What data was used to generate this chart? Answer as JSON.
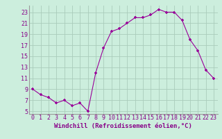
{
  "x": [
    0,
    1,
    2,
    3,
    4,
    5,
    6,
    7,
    8,
    9,
    10,
    11,
    12,
    13,
    14,
    15,
    16,
    17,
    18,
    19,
    20,
    21,
    22,
    23
  ],
  "y": [
    9,
    8,
    7.5,
    6.5,
    7,
    6,
    6.5,
    5,
    12,
    16.5,
    19.5,
    20,
    21,
    22,
    22,
    22.5,
    23.5,
    23,
    23,
    21.5,
    18,
    16,
    12.5,
    11
  ],
  "line_color": "#990099",
  "marker_color": "#990099",
  "bg_color": "#cceedd",
  "grid_color": "#aaccbb",
  "xlabel": "Windchill (Refroidissement éolien,°C)",
  "ylabel_ticks": [
    5,
    7,
    9,
    11,
    13,
    15,
    17,
    19,
    21,
    23
  ],
  "xtick_labels": [
    "0",
    "1",
    "2",
    "3",
    "4",
    "5",
    "6",
    "7",
    "8",
    "9",
    "10",
    "11",
    "12",
    "13",
    "14",
    "15",
    "16",
    "17",
    "18",
    "19",
    "20",
    "21",
    "22",
    "23"
  ],
  "xlim": [
    -0.5,
    23.5
  ],
  "ylim": [
    4.5,
    24.2
  ],
  "xlabel_fontsize": 6.5,
  "tick_fontsize": 6,
  "axis_label_color": "#880088",
  "tick_color": "#880088"
}
